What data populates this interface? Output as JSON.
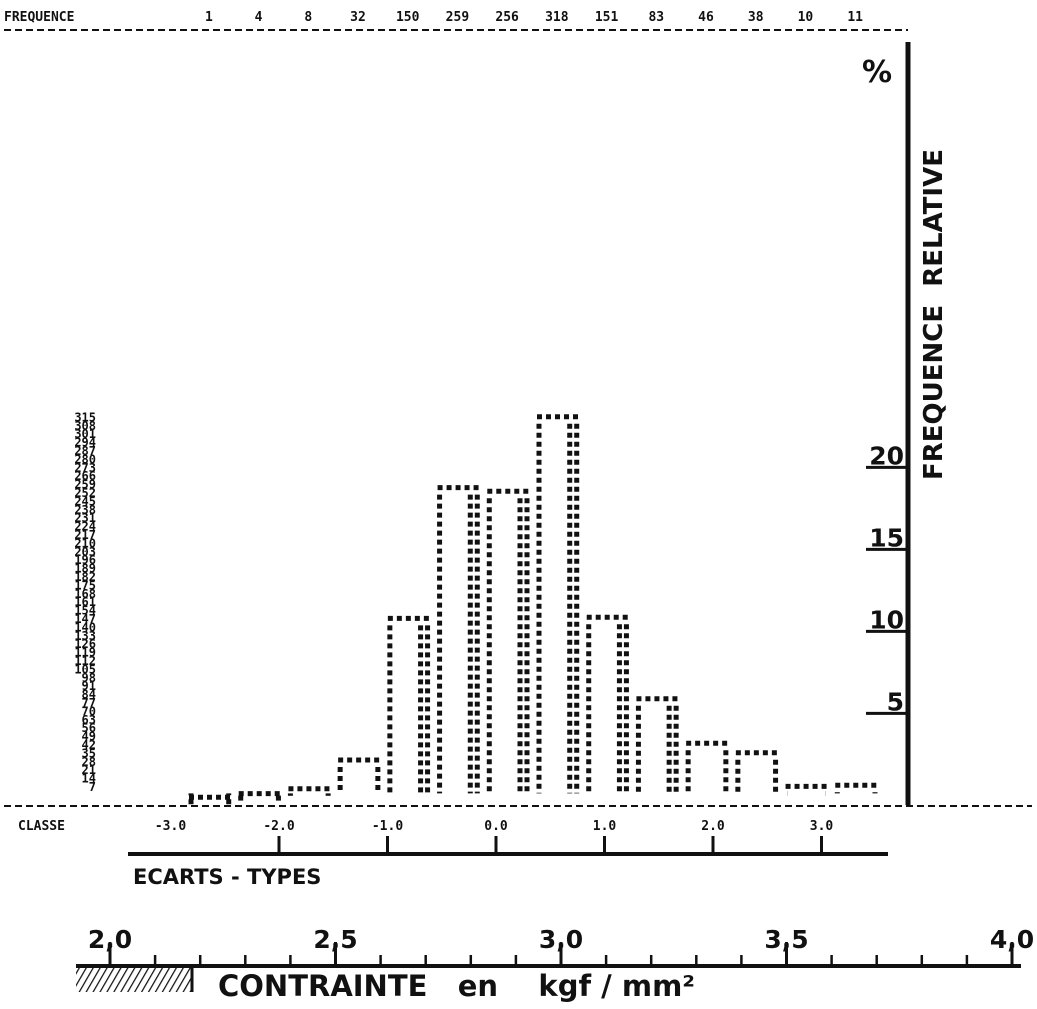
{
  "chart_data": {
    "type": "bar",
    "frequency_label": "FREQUENCE",
    "frequencies": [
      1,
      4,
      8,
      32,
      150,
      259,
      256,
      318,
      151,
      83,
      46,
      38,
      10,
      11
    ],
    "class_label": "CLASSE",
    "class_ticks": [
      "-3.0",
      "-2.0",
      "-1.0",
      "0.0",
      "1.0",
      "2.0",
      "3.0"
    ],
    "ecarts_label": "ECARTS - TYPES",
    "count_ticks": [
      "315",
      "308",
      "301",
      "294",
      "287",
      "280",
      "273",
      "266",
      "259",
      "252",
      "245",
      "238",
      "231",
      "224",
      "217",
      "210",
      "203",
      "196",
      "189",
      "182",
      "175",
      "168",
      "161",
      "154",
      "147",
      "140",
      "133",
      "126",
      "119",
      "112",
      "105",
      "98",
      "91",
      "84",
      "77",
      "70",
      "63",
      "56",
      "49",
      "42",
      "35",
      "28",
      "21",
      "14",
      "7"
    ],
    "pct_unit": "%",
    "pct_ticks": [
      "20",
      "15",
      "10",
      "5"
    ],
    "right_axis_label": "FREQUENCE  RELATIVE",
    "stress_ticks": [
      "2,0",
      "2,5",
      "3,0",
      "3,5",
      "4,0"
    ],
    "stress_label": "CONTRAINTE   en    kgf / mm²",
    "colors": {
      "ink": "#111111",
      "background": "#ffffff"
    }
  }
}
